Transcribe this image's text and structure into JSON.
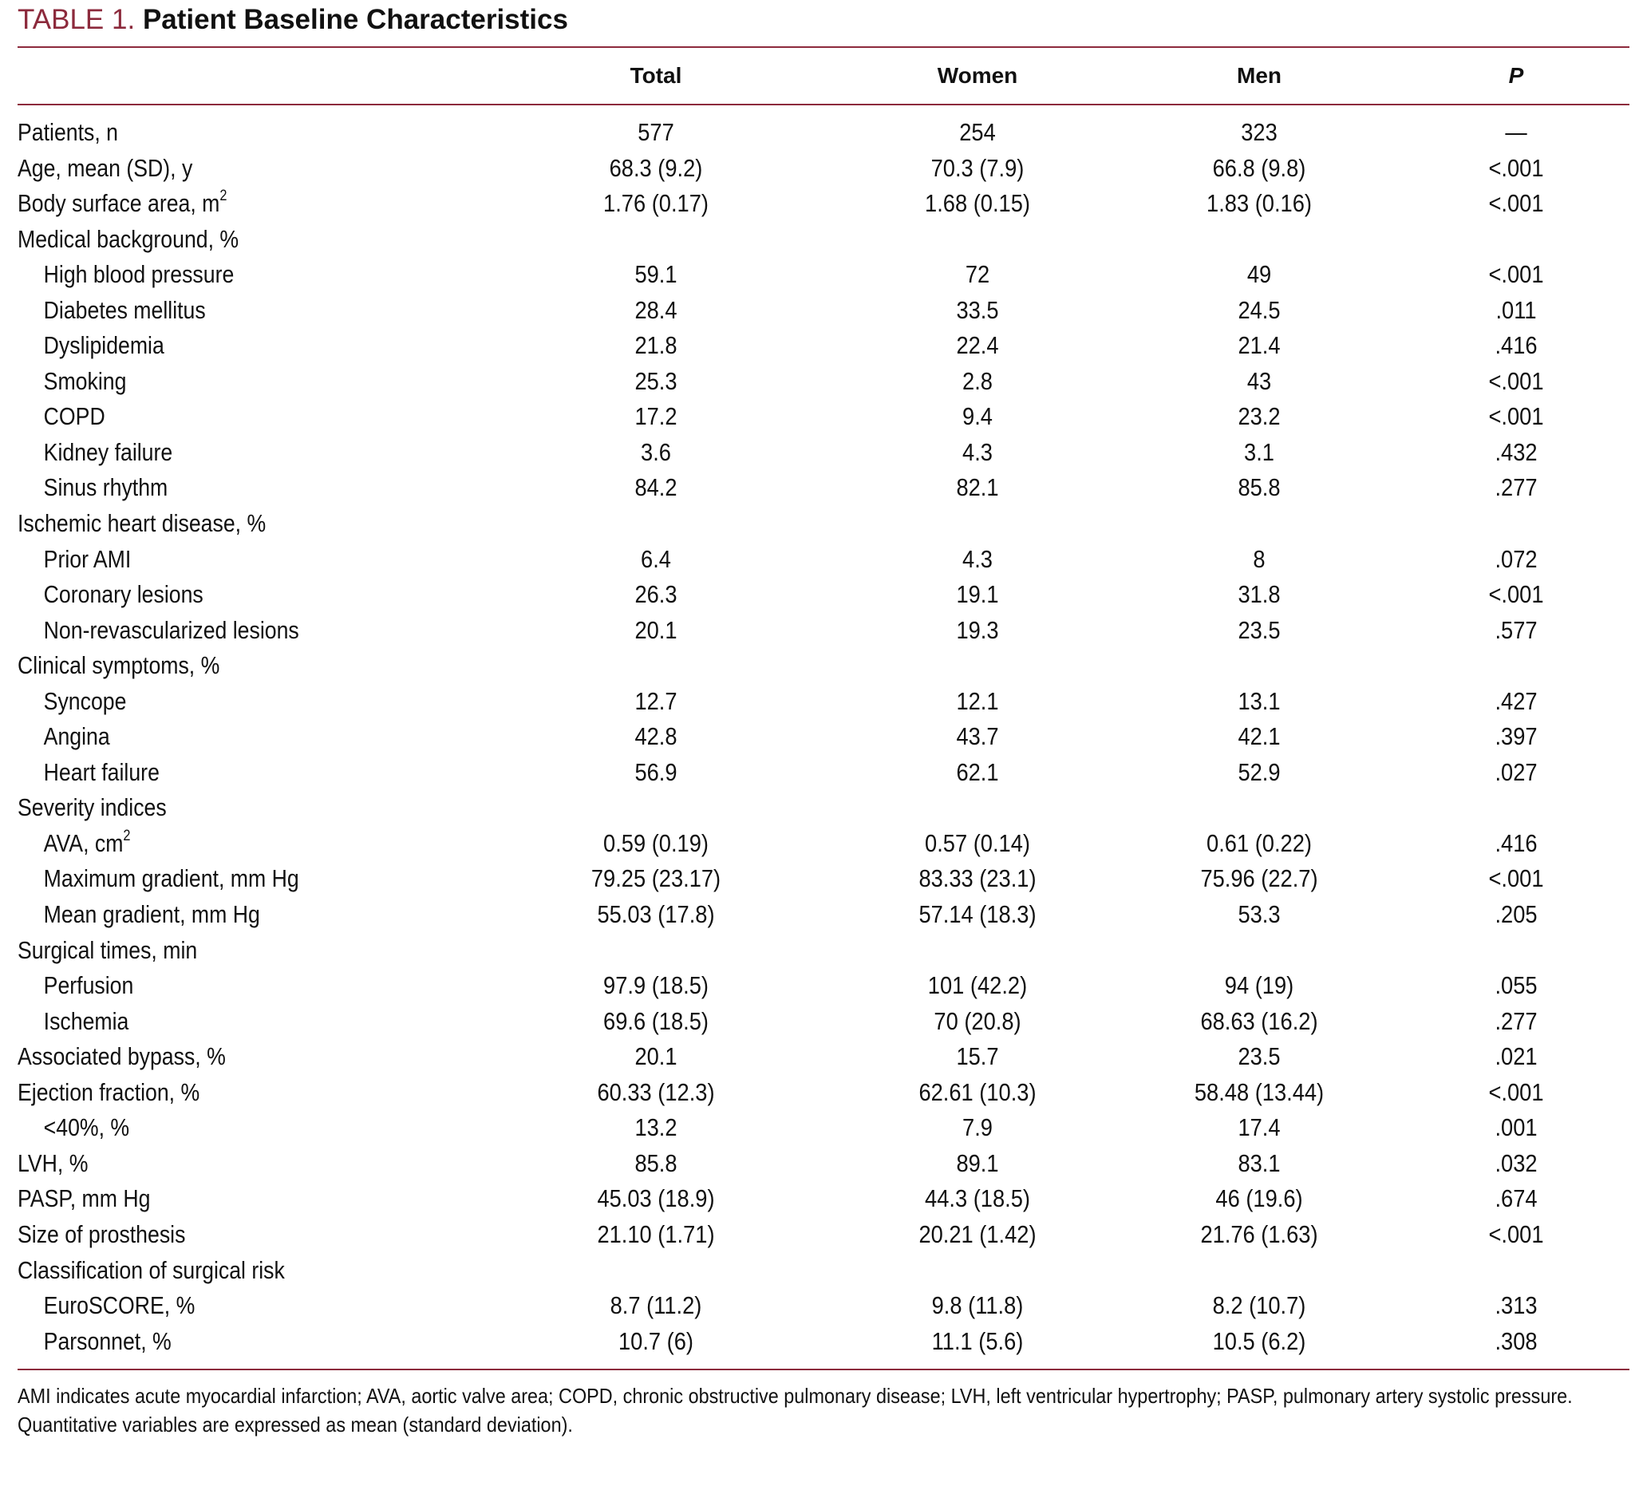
{
  "title": {
    "label": "TABLE 1.",
    "text": "Patient Baseline Characteristics"
  },
  "columns": [
    "",
    "Total",
    "Women",
    "Men",
    "P"
  ],
  "rows": [
    {
      "label": "Patients, n",
      "indent": false,
      "total": "577",
      "women": "254",
      "men": "323",
      "p": "—"
    },
    {
      "label": "Age, mean (SD), y",
      "indent": false,
      "total": "68.3 (9.2)",
      "women": "70.3 (7.9)",
      "men": "66.8 (9.8)",
      "p": "<.001"
    },
    {
      "label": "Body surface area, m",
      "sup": "2",
      "indent": false,
      "total": "1.76 (0.17)",
      "women": "1.68 (0.15)",
      "men": "1.83 (0.16)",
      "p": "<.001"
    },
    {
      "label": "Medical background, %",
      "indent": false,
      "total": "",
      "women": "",
      "men": "",
      "p": ""
    },
    {
      "label": "High blood pressure",
      "indent": true,
      "total": "59.1",
      "women": "72",
      "men": "49",
      "p": "<.001"
    },
    {
      "label": "Diabetes mellitus",
      "indent": true,
      "total": "28.4",
      "women": "33.5",
      "men": "24.5",
      "p": ".011"
    },
    {
      "label": "Dyslipidemia",
      "indent": true,
      "total": "21.8",
      "women": "22.4",
      "men": "21.4",
      "p": ".416"
    },
    {
      "label": "Smoking",
      "indent": true,
      "total": "25.3",
      "women": "2.8",
      "men": "43",
      "p": "<.001"
    },
    {
      "label": "COPD",
      "indent": true,
      "total": "17.2",
      "women": "9.4",
      "men": "23.2",
      "p": "<.001"
    },
    {
      "label": "Kidney failure",
      "indent": true,
      "total": "3.6",
      "women": "4.3",
      "men": "3.1",
      "p": ".432"
    },
    {
      "label": "Sinus rhythm",
      "indent": true,
      "total": "84.2",
      "women": "82.1",
      "men": "85.8",
      "p": ".277"
    },
    {
      "label": "Ischemic heart disease, %",
      "indent": false,
      "total": "",
      "women": "",
      "men": "",
      "p": ""
    },
    {
      "label": "Prior AMI",
      "indent": true,
      "total": "6.4",
      "women": "4.3",
      "men": "8",
      "p": ".072"
    },
    {
      "label": "Coronary lesions",
      "indent": true,
      "total": "26.3",
      "women": "19.1",
      "men": "31.8",
      "p": "<.001"
    },
    {
      "label": "Non-revascularized lesions",
      "indent": true,
      "total": "20.1",
      "women": "19.3",
      "men": "23.5",
      "p": ".577"
    },
    {
      "label": "Clinical symptoms, %",
      "indent": false,
      "total": "",
      "women": "",
      "men": "",
      "p": ""
    },
    {
      "label": "Syncope",
      "indent": true,
      "total": "12.7",
      "women": "12.1",
      "men": "13.1",
      "p": ".427"
    },
    {
      "label": "Angina",
      "indent": true,
      "total": "42.8",
      "women": "43.7",
      "men": "42.1",
      "p": ".397"
    },
    {
      "label": "Heart failure",
      "indent": true,
      "total": "56.9",
      "women": "62.1",
      "men": "52.9",
      "p": ".027"
    },
    {
      "label": "Severity indices",
      "indent": false,
      "total": "",
      "women": "",
      "men": "",
      "p": ""
    },
    {
      "label": "AVA, cm",
      "sup": "2",
      "indent": true,
      "total": "0.59 (0.19)",
      "women": "0.57 (0.14)",
      "men": "0.61 (0.22)",
      "p": ".416"
    },
    {
      "label": "Maximum gradient, mm Hg",
      "indent": true,
      "total": "79.25 (23.17)",
      "women": "83.33 (23.1)",
      "men": "75.96 (22.7)",
      "p": "<.001"
    },
    {
      "label": "Mean gradient, mm Hg",
      "indent": true,
      "total": "55.03 (17.8)",
      "women": "57.14 (18.3)",
      "men": "53.3",
      "p": ".205"
    },
    {
      "label": "Surgical times, min",
      "indent": false,
      "total": "",
      "women": "",
      "men": "",
      "p": ""
    },
    {
      "label": "Perfusion",
      "indent": true,
      "total": "97.9 (18.5)",
      "women": "101 (42.2)",
      "men": "94 (19)",
      "p": ".055"
    },
    {
      "label": "Ischemia",
      "indent": true,
      "total": "69.6 (18.5)",
      "women": "70 (20.8)",
      "men": "68.63 (16.2)",
      "p": ".277"
    },
    {
      "label": "Associated bypass, %",
      "indent": false,
      "total": "20.1",
      "women": "15.7",
      "men": "23.5",
      "p": ".021"
    },
    {
      "label": "Ejection fraction, %",
      "indent": false,
      "total": "60.33 (12.3)",
      "women": "62.61 (10.3)",
      "men": "58.48 (13.44)",
      "p": "<.001"
    },
    {
      "label": "<40%, %",
      "indent": true,
      "total": "13.2",
      "women": "7.9",
      "men": "17.4",
      "p": ".001"
    },
    {
      "label": "LVH, %",
      "indent": false,
      "total": "85.8",
      "women": "89.1",
      "men": "83.1",
      "p": ".032"
    },
    {
      "label": "PASP, mm Hg",
      "indent": false,
      "total": "45.03 (18.9)",
      "women": "44.3 (18.5)",
      "men": "46 (19.6)",
      "p": ".674"
    },
    {
      "label": "Size of prosthesis",
      "indent": false,
      "total": "21.10 (1.71)",
      "women": "20.21 (1.42)",
      "men": "21.76 (1.63)",
      "p": "<.001"
    },
    {
      "label": "Classification of surgical risk",
      "indent": false,
      "total": "",
      "women": "",
      "men": "",
      "p": ""
    },
    {
      "label": "EuroSCORE, %",
      "indent": true,
      "total": "8.7 (11.2)",
      "women": "9.8 (11.8)",
      "men": "8.2 (10.7)",
      "p": ".313"
    },
    {
      "label": "Parsonnet, %",
      "indent": true,
      "total": "10.7 (6)",
      "women": "11.1 (5.6)",
      "men": "10.5 (6.2)",
      "p": ".308"
    }
  ],
  "footnotes": [
    "AMI indicates acute myocardial infarction; AVA, aortic valve area; COPD, chronic obstructive pulmonary disease; LVH, left ventricular hypertrophy; PASP, pulmonary artery systolic pressure.",
    "Quantitative variables are expressed as mean (standard deviation)."
  ]
}
